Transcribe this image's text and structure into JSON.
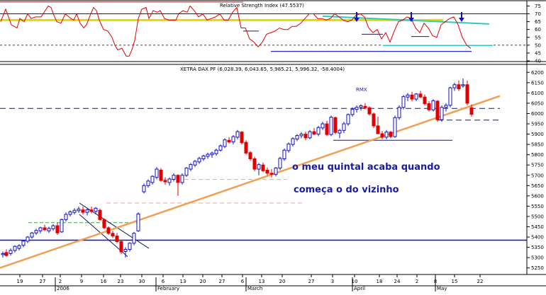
{
  "rsi_panel": {
    "title": "Relative Strength Index (47.5537)",
    "y_ticks": [
      "75",
      "70",
      "65",
      "60",
      "55",
      "50",
      "45",
      "40"
    ],
    "ylim": [
      40,
      77
    ],
    "reference_levels": [
      70,
      50
    ]
  },
  "price_panel": {
    "title": "XETRA DAX PF (6,028.39, 6,043.65, 5,985.21, 5,996.32, -58.4004)",
    "y_ticks": [
      "6200",
      "6150",
      "6100",
      "6050",
      "6000",
      "5950",
      "5900",
      "5850",
      "5800",
      "5750",
      "5700",
      "5650",
      "5600",
      "5550",
      "5500",
      "5450",
      "5400",
      "5350",
      "5300",
      "5250"
    ],
    "ylim": [
      5225,
      6225
    ],
    "annotations": {
      "rmx": "RMX",
      "line1": "o meu quintal acaba quando",
      "line2": "começa o do  vizinho"
    }
  },
  "x_axis": {
    "day_ticks": [
      "19",
      "27",
      "2",
      "9",
      "16",
      "23",
      "30",
      "6",
      "13",
      "20",
      "27",
      "6",
      "13",
      "20",
      "27",
      "3",
      "10",
      "18",
      "24",
      "2",
      "8",
      "15",
      "22"
    ],
    "month_labels": [
      "2006",
      "February",
      "March",
      "April",
      "May"
    ]
  },
  "colors": {
    "up_candle": "#1010c8",
    "down_candle": "#e00000",
    "rsi_line": "#e00000",
    "trendline": "#f0a050",
    "support": "#1010c8",
    "yellow_level": "#e6d800",
    "teal_line": "#30c8c0"
  },
  "chart_data": [
    {
      "type": "line",
      "title": "Relative Strength Index (47.5537)",
      "x": [
        1,
        8,
        16,
        24,
        28,
        34,
        39,
        44,
        50,
        58,
        68,
        72,
        76,
        80,
        86,
        92,
        100,
        104,
        108,
        113,
        118,
        122,
        128,
        132,
        136,
        140,
        146,
        152,
        158,
        162,
        166,
        172,
        178,
        182,
        186,
        190,
        195,
        200,
        206,
        210,
        216,
        222,
        226,
        232,
        238,
        244,
        248,
        252,
        258,
        264,
        268,
        274,
        280,
        286,
        292,
        298,
        304,
        310,
        316,
        322,
        328,
        334,
        340,
        346,
        352,
        358,
        364,
        370,
        376,
        382,
        388,
        394,
        400,
        406,
        412,
        418,
        424,
        430,
        436,
        442,
        448,
        454,
        460,
        466,
        472,
        478,
        484,
        490,
        496,
        502,
        508,
        514,
        520,
        526,
        532,
        538,
        544,
        550,
        556,
        562,
        568,
        574,
        580,
        586,
        592,
        598,
        604,
        610,
        616,
        622,
        628,
        634,
        640,
        646,
        652,
        658,
        664
      ],
      "series": [
        {
          "name": "RSI",
          "values": [
            65,
            73,
            63,
            61,
            67,
            65,
            70,
            67,
            68,
            68,
            75,
            74,
            69,
            65,
            64,
            70,
            67,
            66,
            70,
            64,
            61,
            63,
            70,
            74,
            72,
            66,
            60,
            59,
            55,
            50,
            47,
            48,
            43,
            43,
            47,
            53,
            67,
            73,
            74,
            67,
            72,
            71,
            72,
            67,
            66,
            66,
            66,
            70,
            72,
            71,
            75,
            72,
            68,
            70,
            66,
            67,
            68,
            70,
            66,
            66,
            71,
            74,
            61,
            61,
            54,
            52,
            49,
            52,
            57,
            58,
            59,
            61,
            60,
            60,
            62,
            62,
            64,
            67,
            70,
            70,
            67,
            67,
            66,
            67,
            70,
            68,
            66,
            65,
            66,
            69,
            70,
            68,
            61,
            58,
            60,
            54,
            58,
            52,
            59,
            65,
            66,
            68,
            67,
            61,
            58,
            64,
            61,
            56,
            55,
            63,
            65,
            67,
            68,
            63,
            55,
            50,
            48
          ]
        }
      ],
      "xlim": [
        0,
        705
      ],
      "ylim": [
        40,
        77
      ],
      "reference_lines": [
        70,
        50
      ]
    },
    {
      "type": "candlestick",
      "title": "XETRA DAX PF (6,028.39, 6,043.65, 5,985.21, 5,996.32, -58.4004)",
      "dates_axis": [
        "19",
        "27",
        "2",
        "9",
        "16",
        "23",
        "30",
        "6",
        "13",
        "20",
        "27",
        "6",
        "13",
        "20",
        "27",
        "3",
        "10",
        "18",
        "24",
        "2",
        "8",
        "15",
        "22"
      ],
      "ohlc": [
        {
          "x": 4,
          "o": 5315,
          "h": 5330,
          "l": 5300,
          "c": 5320
        },
        {
          "x": 9,
          "o": 5325,
          "h": 5340,
          "l": 5305,
          "c": 5310
        },
        {
          "x": 15,
          "o": 5320,
          "h": 5345,
          "l": 5310,
          "c": 5335
        },
        {
          "x": 21,
          "o": 5335,
          "h": 5360,
          "l": 5325,
          "c": 5355
        },
        {
          "x": 27,
          "o": 5345,
          "h": 5365,
          "l": 5335,
          "c": 5358
        },
        {
          "x": 33,
          "o": 5360,
          "h": 5385,
          "l": 5350,
          "c": 5380
        },
        {
          "x": 39,
          "o": 5380,
          "h": 5405,
          "l": 5370,
          "c": 5400
        },
        {
          "x": 45,
          "o": 5400,
          "h": 5425,
          "l": 5392,
          "c": 5420
        },
        {
          "x": 51,
          "o": 5420,
          "h": 5440,
          "l": 5410,
          "c": 5432
        },
        {
          "x": 57,
          "o": 5430,
          "h": 5450,
          "l": 5418,
          "c": 5445
        },
        {
          "x": 63,
          "o": 5445,
          "h": 5460,
          "l": 5430,
          "c": 5435
        },
        {
          "x": 69,
          "o": 5430,
          "h": 5450,
          "l": 5420,
          "c": 5442
        },
        {
          "x": 75,
          "o": 5440,
          "h": 5462,
          "l": 5430,
          "c": 5455
        },
        {
          "x": 81,
          "o": 5455,
          "h": 5470,
          "l": 5410,
          "c": 5420
        },
        {
          "x": 87,
          "o": 5425,
          "h": 5490,
          "l": 5420,
          "c": 5485
        },
        {
          "x": 93,
          "o": 5485,
          "h": 5520,
          "l": 5475,
          "c": 5510
        },
        {
          "x": 99,
          "o": 5510,
          "h": 5530,
          "l": 5500,
          "c": 5522
        },
        {
          "x": 105,
          "o": 5520,
          "h": 5540,
          "l": 5510,
          "c": 5530
        },
        {
          "x": 111,
          "o": 5528,
          "h": 5548,
          "l": 5518,
          "c": 5536
        },
        {
          "x": 117,
          "o": 5532,
          "h": 5548,
          "l": 5510,
          "c": 5520
        },
        {
          "x": 123,
          "o": 5520,
          "h": 5540,
          "l": 5505,
          "c": 5532
        },
        {
          "x": 129,
          "o": 5532,
          "h": 5548,
          "l": 5515,
          "c": 5524
        },
        {
          "x": 135,
          "o": 5525,
          "h": 5545,
          "l": 5515,
          "c": 5540
        },
        {
          "x": 141,
          "o": 5530,
          "h": 5538,
          "l": 5478,
          "c": 5485
        },
        {
          "x": 147,
          "o": 5485,
          "h": 5490,
          "l": 5438,
          "c": 5445
        },
        {
          "x": 153,
          "o": 5445,
          "h": 5452,
          "l": 5410,
          "c": 5418
        },
        {
          "x": 159,
          "o": 5418,
          "h": 5430,
          "l": 5395,
          "c": 5405
        },
        {
          "x": 165,
          "o": 5405,
          "h": 5420,
          "l": 5370,
          "c": 5378
        },
        {
          "x": 171,
          "o": 5378,
          "h": 5385,
          "l": 5318,
          "c": 5328
        },
        {
          "x": 177,
          "o": 5330,
          "h": 5350,
          "l": 5300,
          "c": 5340
        },
        {
          "x": 183,
          "o": 5340,
          "h": 5375,
          "l": 5330,
          "c": 5370
        },
        {
          "x": 189,
          "o": 5370,
          "h": 5425,
          "l": 5360,
          "c": 5418
        },
        {
          "x": 195,
          "o": 5430,
          "h": 5520,
          "l": 5425,
          "c": 5512
        },
        {
          "x": 203,
          "o": 5620,
          "h": 5660,
          "l": 5612,
          "c": 5650
        },
        {
          "x": 209,
          "o": 5650,
          "h": 5680,
          "l": 5640,
          "c": 5672
        },
        {
          "x": 215,
          "o": 5665,
          "h": 5700,
          "l": 5655,
          "c": 5695
        },
        {
          "x": 221,
          "o": 5690,
          "h": 5740,
          "l": 5680,
          "c": 5730
        },
        {
          "x": 227,
          "o": 5725,
          "h": 5735,
          "l": 5668,
          "c": 5675
        },
        {
          "x": 233,
          "o": 5675,
          "h": 5690,
          "l": 5655,
          "c": 5668
        },
        {
          "x": 239,
          "o": 5665,
          "h": 5690,
          "l": 5650,
          "c": 5682
        },
        {
          "x": 245,
          "o": 5680,
          "h": 5710,
          "l": 5670,
          "c": 5700
        },
        {
          "x": 251,
          "o": 5700,
          "h": 5705,
          "l": 5600,
          "c": 5665
        },
        {
          "x": 257,
          "o": 5665,
          "h": 5710,
          "l": 5655,
          "c": 5700
        },
        {
          "x": 263,
          "o": 5700,
          "h": 5740,
          "l": 5692,
          "c": 5735
        },
        {
          "x": 269,
          "o": 5730,
          "h": 5760,
          "l": 5720,
          "c": 5752
        },
        {
          "x": 275,
          "o": 5750,
          "h": 5775,
          "l": 5740,
          "c": 5768
        },
        {
          "x": 281,
          "o": 5765,
          "h": 5790,
          "l": 5755,
          "c": 5782
        },
        {
          "x": 287,
          "o": 5780,
          "h": 5800,
          "l": 5770,
          "c": 5794
        },
        {
          "x": 293,
          "o": 5792,
          "h": 5810,
          "l": 5780,
          "c": 5802
        },
        {
          "x": 299,
          "o": 5800,
          "h": 5815,
          "l": 5785,
          "c": 5808
        },
        {
          "x": 305,
          "o": 5805,
          "h": 5830,
          "l": 5795,
          "c": 5822
        },
        {
          "x": 311,
          "o": 5822,
          "h": 5850,
          "l": 5815,
          "c": 5843
        },
        {
          "x": 317,
          "o": 5840,
          "h": 5880,
          "l": 5832,
          "c": 5872
        },
        {
          "x": 323,
          "o": 5870,
          "h": 5885,
          "l": 5855,
          "c": 5862
        },
        {
          "x": 329,
          "o": 5862,
          "h": 5895,
          "l": 5850,
          "c": 5888
        },
        {
          "x": 335,
          "o": 5885,
          "h": 5920,
          "l": 5875,
          "c": 5912
        },
        {
          "x": 341,
          "o": 5910,
          "h": 5915,
          "l": 5850,
          "c": 5858
        },
        {
          "x": 347,
          "o": 5860,
          "h": 5870,
          "l": 5800,
          "c": 5808
        },
        {
          "x": 353,
          "o": 5810,
          "h": 5818,
          "l": 5770,
          "c": 5780
        },
        {
          "x": 359,
          "o": 5780,
          "h": 5790,
          "l": 5720,
          "c": 5730
        },
        {
          "x": 365,
          "o": 5730,
          "h": 5760,
          "l": 5700,
          "c": 5752
        },
        {
          "x": 371,
          "o": 5750,
          "h": 5762,
          "l": 5715,
          "c": 5722
        },
        {
          "x": 377,
          "o": 5725,
          "h": 5738,
          "l": 5700,
          "c": 5710
        },
        {
          "x": 383,
          "o": 5710,
          "h": 5730,
          "l": 5690,
          "c": 5705
        },
        {
          "x": 389,
          "o": 5705,
          "h": 5740,
          "l": 5695,
          "c": 5735
        },
        {
          "x": 395,
          "o": 5735,
          "h": 5790,
          "l": 5725,
          "c": 5782
        },
        {
          "x": 401,
          "o": 5780,
          "h": 5830,
          "l": 5770,
          "c": 5822
        },
        {
          "x": 407,
          "o": 5820,
          "h": 5860,
          "l": 5810,
          "c": 5852
        },
        {
          "x": 413,
          "o": 5850,
          "h": 5885,
          "l": 5840,
          "c": 5878
        },
        {
          "x": 419,
          "o": 5876,
          "h": 5900,
          "l": 5866,
          "c": 5893
        },
        {
          "x": 425,
          "o": 5892,
          "h": 5910,
          "l": 5880,
          "c": 5900
        },
        {
          "x": 431,
          "o": 5900,
          "h": 5912,
          "l": 5870,
          "c": 5882
        },
        {
          "x": 437,
          "o": 5882,
          "h": 5920,
          "l": 5875,
          "c": 5912
        },
        {
          "x": 443,
          "o": 5912,
          "h": 5930,
          "l": 5895,
          "c": 5900
        },
        {
          "x": 449,
          "o": 5900,
          "h": 5940,
          "l": 5890,
          "c": 5932
        },
        {
          "x": 455,
          "o": 5930,
          "h": 5960,
          "l": 5920,
          "c": 5950
        },
        {
          "x": 461,
          "o": 5950,
          "h": 5965,
          "l": 5890,
          "c": 5898
        },
        {
          "x": 467,
          "o": 5898,
          "h": 5990,
          "l": 5890,
          "c": 5982
        },
        {
          "x": 473,
          "o": 5980,
          "h": 5985,
          "l": 5900,
          "c": 5908
        },
        {
          "x": 479,
          "o": 5905,
          "h": 5925,
          "l": 5880,
          "c": 5918
        },
        {
          "x": 485,
          "o": 5918,
          "h": 5960,
          "l": 5905,
          "c": 5950
        },
        {
          "x": 491,
          "o": 5950,
          "h": 6000,
          "l": 5940,
          "c": 5995
        },
        {
          "x": 497,
          "o": 5995,
          "h": 6030,
          "l": 5985,
          "c": 6020
        },
        {
          "x": 503,
          "o": 6020,
          "h": 6040,
          "l": 6005,
          "c": 6030
        },
        {
          "x": 509,
          "o": 6030,
          "h": 6045,
          "l": 6015,
          "c": 6038
        },
        {
          "x": 515,
          "o": 6035,
          "h": 6050,
          "l": 6020,
          "c": 6028
        },
        {
          "x": 521,
          "o": 6028,
          "h": 6035,
          "l": 5990,
          "c": 5998
        },
        {
          "x": 527,
          "o": 5998,
          "h": 6005,
          "l": 5930,
          "c": 5940
        },
        {
          "x": 533,
          "o": 5940,
          "h": 5985,
          "l": 5900,
          "c": 5902
        },
        {
          "x": 539,
          "o": 5902,
          "h": 5915,
          "l": 5875,
          "c": 5885
        },
        {
          "x": 545,
          "o": 5885,
          "h": 5920,
          "l": 5875,
          "c": 5910
        },
        {
          "x": 551,
          "o": 5910,
          "h": 5915,
          "l": 5880,
          "c": 5888
        },
        {
          "x": 557,
          "o": 5888,
          "h": 5990,
          "l": 5882,
          "c": 5980
        },
        {
          "x": 563,
          "o": 5980,
          "h": 6040,
          "l": 5970,
          "c": 6030
        },
        {
          "x": 569,
          "o": 6030,
          "h": 6090,
          "l": 6020,
          "c": 6082
        },
        {
          "x": 575,
          "o": 6080,
          "h": 6100,
          "l": 6060,
          "c": 6090
        },
        {
          "x": 581,
          "o": 6090,
          "h": 6105,
          "l": 6060,
          "c": 6070
        },
        {
          "x": 587,
          "o": 6070,
          "h": 6100,
          "l": 6060,
          "c": 6095
        },
        {
          "x": 593,
          "o": 6095,
          "h": 6110,
          "l": 6075,
          "c": 6080
        },
        {
          "x": 599,
          "o": 6080,
          "h": 6092,
          "l": 6040,
          "c": 6048
        },
        {
          "x": 605,
          "o": 6048,
          "h": 6060,
          "l": 6010,
          "c": 6018
        },
        {
          "x": 611,
          "o": 6018,
          "h": 6070,
          "l": 6010,
          "c": 6062
        },
        {
          "x": 617,
          "o": 6060,
          "h": 6065,
          "l": 5960,
          "c": 5970
        },
        {
          "x": 623,
          "o": 5970,
          "h": 6040,
          "l": 5960,
          "c": 6030
        },
        {
          "x": 629,
          "o": 6030,
          "h": 6050,
          "l": 6010,
          "c": 6040
        },
        {
          "x": 635,
          "o": 6040,
          "h": 6130,
          "l": 6030,
          "c": 6125
        },
        {
          "x": 641,
          "o": 6125,
          "h": 6150,
          "l": 6110,
          "c": 6140
        },
        {
          "x": 647,
          "o": 6140,
          "h": 6160,
          "l": 6110,
          "c": 6120
        },
        {
          "x": 653,
          "o": 6135,
          "h": 6170,
          "l": 6125,
          "c": 6140
        },
        {
          "x": 659,
          "o": 6140,
          "h": 6160,
          "l": 6040,
          "c": 6050
        },
        {
          "x": 665,
          "o": 6028,
          "h": 6044,
          "l": 5985,
          "c": 5996
        }
      ],
      "xlim": [
        0,
        705
      ],
      "ylim": [
        5225,
        6225
      ],
      "reference_lines": [
        6025,
        5385
      ]
    }
  ]
}
